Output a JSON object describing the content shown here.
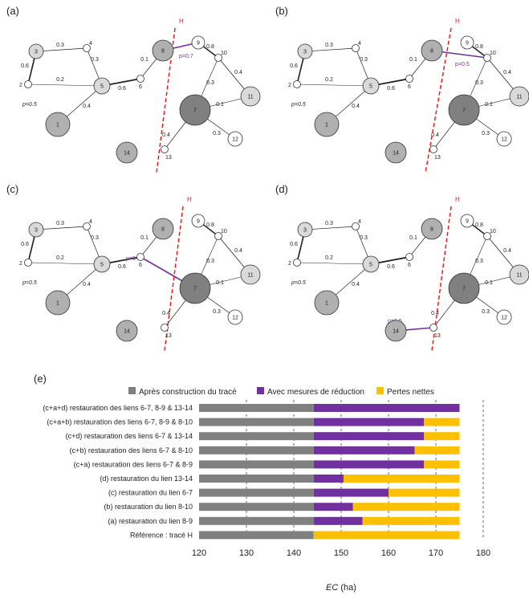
{
  "colors": {
    "gray_bar": "#808080",
    "purple": "#7030a0",
    "orange": "#ffc000",
    "red_line": "#e02020",
    "node_dark": "#808080",
    "node_mid": "#b0b0b0",
    "node_light": "#d9d9d9"
  },
  "panels": [
    {
      "label": "(a)",
      "h_label": "H",
      "nodes": [
        {
          "id": "1",
          "label": "1",
          "shade": "mid"
        },
        {
          "id": "2",
          "label": "2",
          "shade": "white"
        },
        {
          "id": "3",
          "label": "3",
          "shade": "light"
        },
        {
          "id": "4",
          "label": "4",
          "shade": "white"
        },
        {
          "id": "5",
          "label": "5",
          "shade": "light"
        },
        {
          "id": "6",
          "label": "6",
          "shade": "white"
        },
        {
          "id": "7",
          "label": "7",
          "shade": "dark"
        },
        {
          "id": "8",
          "label": "8",
          "shade": "mid"
        },
        {
          "id": "9",
          "label": "9",
          "shade": "white"
        },
        {
          "id": "10",
          "label": "10",
          "shade": "white"
        },
        {
          "id": "11",
          "label": "11",
          "shade": "light"
        },
        {
          "id": "12",
          "label": "12",
          "shade": "white"
        },
        {
          "id": "13",
          "label": "13",
          "shade": "white"
        },
        {
          "id": "14",
          "label": "14",
          "shade": "mid"
        }
      ],
      "edge_labels": [
        "0.3",
        "0.3",
        "0.6",
        "0.2",
        "0.4",
        "0.6",
        "0.1",
        "0.8",
        "0.4",
        "0.3",
        "0.1",
        "0.4",
        "0.3"
      ],
      "p_label": "p=0.5",
      "restored_label": "p=0.7"
    },
    {
      "label": "(b)",
      "h_label": "H",
      "nodes": [
        {
          "id": "1",
          "label": "1",
          "shade": "mid"
        },
        {
          "id": "2",
          "label": "2",
          "shade": "white"
        },
        {
          "id": "3",
          "label": "3",
          "shade": "light"
        },
        {
          "id": "4",
          "label": "4",
          "shade": "white"
        },
        {
          "id": "5",
          "label": "5",
          "shade": "light"
        },
        {
          "id": "6",
          "label": "6",
          "shade": "white"
        },
        {
          "id": "7",
          "label": "7",
          "shade": "dark"
        },
        {
          "id": "8",
          "label": "8",
          "shade": "mid"
        },
        {
          "id": "9",
          "label": "9",
          "shade": "white"
        },
        {
          "id": "10",
          "label": "10",
          "shade": "white"
        },
        {
          "id": "11",
          "label": "11",
          "shade": "light"
        },
        {
          "id": "12",
          "label": "12",
          "shade": "white"
        },
        {
          "id": "13",
          "label": "13",
          "shade": "white"
        },
        {
          "id": "14",
          "label": "14",
          "shade": "mid"
        }
      ],
      "edge_labels": [
        "0.3",
        "0.3",
        "0.6",
        "0.2",
        "0.4",
        "0.6",
        "0.1",
        "0.8",
        "0.4",
        "0.3",
        "0.1",
        "0.4",
        "0.3"
      ],
      "p_label": "p=0.5",
      "restored_label": "p=0.5"
    },
    {
      "label": "(c)",
      "h_label": "H",
      "nodes": [
        {
          "id": "1",
          "label": "1",
          "shade": "mid"
        },
        {
          "id": "2",
          "label": "2",
          "shade": "white"
        },
        {
          "id": "3",
          "label": "3",
          "shade": "light"
        },
        {
          "id": "4",
          "label": "4",
          "shade": "white"
        },
        {
          "id": "5",
          "label": "5",
          "shade": "light"
        },
        {
          "id": "6",
          "label": "6",
          "shade": "white"
        },
        {
          "id": "7",
          "label": "7",
          "shade": "dark"
        },
        {
          "id": "8",
          "label": "8",
          "shade": "mid"
        },
        {
          "id": "9",
          "label": "9",
          "shade": "white"
        },
        {
          "id": "10",
          "label": "10",
          "shade": "white"
        },
        {
          "id": "11",
          "label": "11",
          "shade": "light"
        },
        {
          "id": "12",
          "label": "12",
          "shade": "white"
        },
        {
          "id": "13",
          "label": "13",
          "shade": "white"
        },
        {
          "id": "14",
          "label": "14",
          "shade": "mid"
        }
      ],
      "edge_labels": [
        "0.3",
        "0.3",
        "0.6",
        "0.2",
        "0.4",
        "0.6",
        "0.1",
        "0.8",
        "0.4",
        "0.3",
        "0.1",
        "0.4",
        "0.3"
      ],
      "p_label": "p=0.5",
      "restored_label": "p=0.7"
    },
    {
      "label": "(d)",
      "h_label": "H",
      "nodes": [
        {
          "id": "1",
          "label": "1",
          "shade": "mid"
        },
        {
          "id": "2",
          "label": "2",
          "shade": "white"
        },
        {
          "id": "3",
          "label": "3",
          "shade": "light"
        },
        {
          "id": "4",
          "label": "4",
          "shade": "white"
        },
        {
          "id": "5",
          "label": "5",
          "shade": "light"
        },
        {
          "id": "6",
          "label": "6",
          "shade": "white"
        },
        {
          "id": "7",
          "label": "7",
          "shade": "dark"
        },
        {
          "id": "8",
          "label": "8",
          "shade": "mid"
        },
        {
          "id": "9",
          "label": "9",
          "shade": "white"
        },
        {
          "id": "10",
          "label": "10",
          "shade": "white"
        },
        {
          "id": "11",
          "label": "11",
          "shade": "light"
        },
        {
          "id": "12",
          "label": "12",
          "shade": "white"
        },
        {
          "id": "13",
          "label": "13",
          "shade": "white"
        },
        {
          "id": "14",
          "label": "14",
          "shade": "mid"
        }
      ],
      "edge_labels": [
        "0.3",
        "0.3",
        "0.6",
        "0.2",
        "0.4",
        "0.6",
        "0.1",
        "0.8",
        "0.4",
        "0.3",
        "0.1",
        "0.4",
        "0.3"
      ],
      "p_label": "p=0.5",
      "restored_label": "p=0.5"
    }
  ],
  "chart_data": {
    "type": "bar",
    "orientation": "horizontal",
    "stacked": true,
    "panel_label": "(e)",
    "legend": [
      "Après construction du tracé",
      "Avec mesures de réduction",
      "Pertes nettes"
    ],
    "legend_position": "top",
    "categories": [
      "(c+a+d) restauration des liens 6-7, 8-9 & 13-14",
      "(c+a+b) restauration des liens 6-7, 8-9 & 8-10",
      "(c+d) restauration des liens 6-7 & 13-14",
      "(c+b) restauration des liens 6-7 & 8-10",
      "(c+a) restauration des liens 6-7 & 8-9",
      "(d) restauration du lien 13-14",
      "(c) restauration du lien 6-7",
      "(b) restauration du lien 8-10",
      "(a) restauration du lien 8-9",
      "Référence : tracé H"
    ],
    "base": [
      144.2,
      144.2,
      144.2,
      144.2,
      144.2,
      144.2,
      144.2,
      144.2,
      144.2,
      144.2
    ],
    "reduction_end": [
      175.0,
      167.5,
      167.5,
      165.5,
      167.5,
      150.5,
      160.0,
      152.5,
      154.5,
      144.2
    ],
    "total": [
      175.0,
      175.0,
      175.0,
      175.0,
      175.0,
      175.0,
      175.0,
      175.0,
      175.0,
      175.0
    ],
    "xlim": [
      120,
      180
    ],
    "xticks": [
      "120",
      "130",
      "140",
      "150",
      "160",
      "170",
      "180"
    ],
    "xlabel": "EC",
    "xlabel_unit": " (ha)",
    "grid": "vertical dashed"
  }
}
